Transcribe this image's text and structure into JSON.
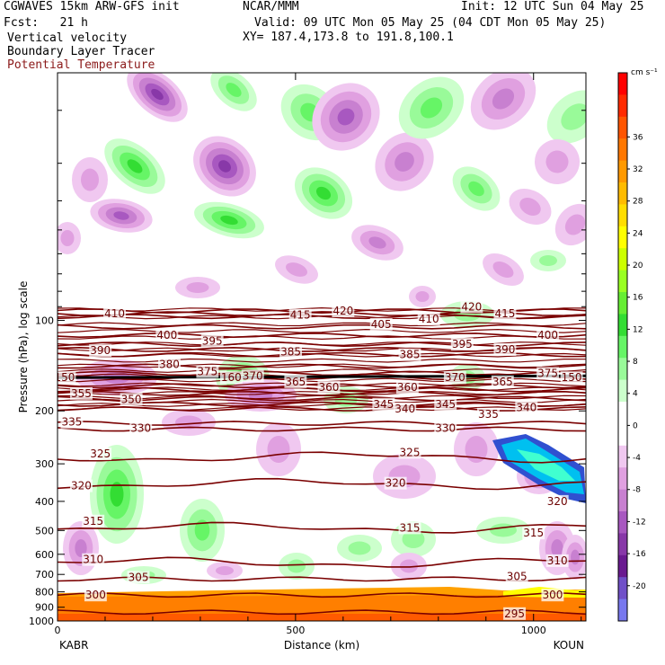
{
  "header": {
    "model": "CGWAVES 15km ARW-GFS init",
    "fcst": "Fcst:   21 h",
    "org": "NCAR/MMM",
    "init": "Init: 12 UTC Sun 04 May 25",
    "valid": "Valid: 09 UTC Mon 05 May 25 (04 CDT Mon 05 May 25)",
    "xy": "XY= 187.4,173.8 to 191.8,100.1",
    "field1": "Vertical velocity",
    "field2": "Boundary Layer Tracer",
    "field3": "Potential Temperature"
  },
  "colors": {
    "theta": "#7a0000",
    "tropopause": "#000000",
    "frame": "#000000"
  },
  "chart_data": {
    "type": "heatmap",
    "xlabel": "Distance (km)",
    "ylabel": "Pressure (hPa), log scale",
    "xlim": [
      0,
      1110
    ],
    "x_ticks": [
      "0",
      "500",
      "1000"
    ],
    "x_end_labels": [
      "KABR",
      "KOUN"
    ],
    "y_log": true,
    "ylim": [
      1000,
      15
    ],
    "y_ticks": [
      "100",
      "200",
      "300",
      "400",
      "500",
      "600",
      "700",
      "800",
      "900",
      "1000"
    ],
    "colorbar": {
      "unit": "cm s⁻¹",
      "labels": [
        "36",
        "32",
        "28",
        "24",
        "20",
        "16",
        "12",
        "8",
        "4",
        "0",
        "-4",
        "-8",
        "-12",
        "-16",
        "-20"
      ],
      "colors": [
        "#ff0000",
        "#ff2a00",
        "#ff5500",
        "#ff7700",
        "#ff9900",
        "#ffbb00",
        "#ffdd00",
        "#ffff00",
        "#ccff00",
        "#99ff22",
        "#66ee33",
        "#33dd33",
        "#66f566",
        "#99fa99",
        "#ccffcc",
        "#ffffff",
        "#ffffff",
        "#f0c8f0",
        "#e0a0e0",
        "#c880d0",
        "#a858c0",
        "#8838a8",
        "#6a1a90",
        "#7050c8",
        "#7878ee"
      ]
    },
    "theta_contours": [
      {
        "value": "410",
        "p": 95
      },
      {
        "value": "415",
        "p": 97
      },
      {
        "value": "420",
        "p": 93
      },
      {
        "value": "405",
        "p": 105
      },
      {
        "value": "400",
        "p": 112
      },
      {
        "value": "395",
        "p": 120
      },
      {
        "value": "390",
        "p": 125
      },
      {
        "value": "385",
        "p": 130
      },
      {
        "value": "380",
        "p": 142
      },
      {
        "value": "375",
        "p": 150
      },
      {
        "value": "370",
        "p": 155
      },
      {
        "value": "365",
        "p": 165
      },
      {
        "value": "360",
        "p": 170
      },
      {
        "value": "355",
        "p": 175
      },
      {
        "value": "350",
        "p": 182
      },
      {
        "value": "345",
        "p": 190
      },
      {
        "value": "340",
        "p": 197
      },
      {
        "value": "335",
        "p": 220
      },
      {
        "value": "330",
        "p": 230
      },
      {
        "value": "325",
        "p": 285
      },
      {
        "value": "320",
        "p": 350
      },
      {
        "value": "315",
        "p": 490
      },
      {
        "value": "310",
        "p": 640
      },
      {
        "value": "305",
        "p": 725
      },
      {
        "value": "300",
        "p": 820
      },
      {
        "value": "295",
        "p": 935
      }
    ],
    "tropopause_label": "150",
    "labels_on_plot": [
      {
        "text": "410",
        "x": 120,
        "p": 95
      },
      {
        "text": "415",
        "x": 510,
        "p": 96
      },
      {
        "text": "420",
        "x": 600,
        "p": 93
      },
      {
        "text": "405",
        "x": 680,
        "p": 103
      },
      {
        "text": "410",
        "x": 780,
        "p": 99
      },
      {
        "text": "420",
        "x": 870,
        "p": 90
      },
      {
        "text": "415",
        "x": 940,
        "p": 95
      },
      {
        "text": "400",
        "x": 230,
        "p": 112
      },
      {
        "text": "395",
        "x": 325,
        "p": 117
      },
      {
        "text": "390",
        "x": 90,
        "p": 126
      },
      {
        "text": "385",
        "x": 490,
        "p": 127
      },
      {
        "text": "385",
        "x": 740,
        "p": 130
      },
      {
        "text": "395",
        "x": 850,
        "p": 120
      },
      {
        "text": "390",
        "x": 940,
        "p": 125
      },
      {
        "text": "400",
        "x": 1030,
        "p": 112
      },
      {
        "text": "380",
        "x": 235,
        "p": 140
      },
      {
        "text": "375",
        "x": 315,
        "p": 148
      },
      {
        "text": "160",
        "x": 365,
        "p": 155
      },
      {
        "text": "370",
        "x": 410,
        "p": 153
      },
      {
        "text": "365",
        "x": 500,
        "p": 160
      },
      {
        "text": "370",
        "x": 835,
        "p": 155
      },
      {
        "text": "365",
        "x": 935,
        "p": 160
      },
      {
        "text": "375",
        "x": 1030,
        "p": 150
      },
      {
        "text": "150",
        "x": 15,
        "p": 155
      },
      {
        "text": "150",
        "x": 1080,
        "p": 155
      },
      {
        "text": "360",
        "x": 570,
        "p": 167
      },
      {
        "text": "360",
        "x": 735,
        "p": 167
      },
      {
        "text": "355",
        "x": 50,
        "p": 175
      },
      {
        "text": "350",
        "x": 155,
        "p": 183
      },
      {
        "text": "345",
        "x": 685,
        "p": 190
      },
      {
        "text": "345",
        "x": 815,
        "p": 190
      },
      {
        "text": "340",
        "x": 730,
        "p": 197
      },
      {
        "text": "340",
        "x": 985,
        "p": 195
      },
      {
        "text": "335",
        "x": 30,
        "p": 218
      },
      {
        "text": "335",
        "x": 905,
        "p": 205
      },
      {
        "text": "330",
        "x": 175,
        "p": 228
      },
      {
        "text": "330",
        "x": 815,
        "p": 228
      },
      {
        "text": "325",
        "x": 90,
        "p": 278
      },
      {
        "text": "325",
        "x": 740,
        "p": 275
      },
      {
        "text": "320",
        "x": 50,
        "p": 355
      },
      {
        "text": "320",
        "x": 710,
        "p": 348
      },
      {
        "text": "320",
        "x": 1050,
        "p": 400
      },
      {
        "text": "315",
        "x": 75,
        "p": 465
      },
      {
        "text": "315",
        "x": 740,
        "p": 490
      },
      {
        "text": "315",
        "x": 1000,
        "p": 510
      },
      {
        "text": "310",
        "x": 75,
        "p": 625
      },
      {
        "text": "310",
        "x": 1050,
        "p": 630
      },
      {
        "text": "305",
        "x": 170,
        "p": 715
      },
      {
        "text": "305",
        "x": 965,
        "p": 710
      },
      {
        "text": "300",
        "x": 80,
        "p": 820
      },
      {
        "text": "300",
        "x": 1040,
        "p": 820
      },
      {
        "text": "295",
        "x": 960,
        "p": 945
      }
    ]
  }
}
